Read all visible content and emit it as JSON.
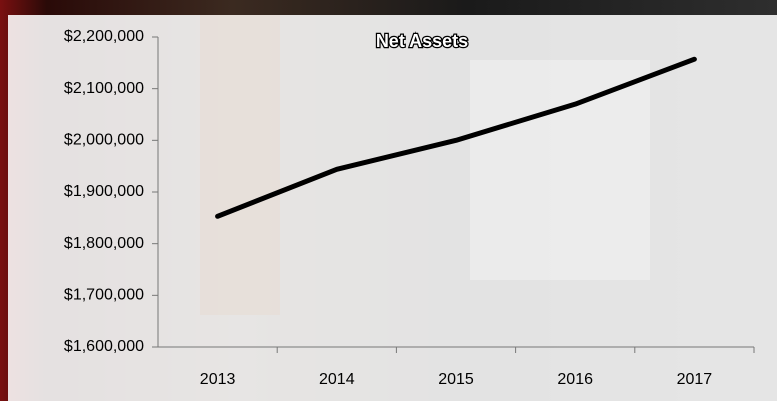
{
  "chart_data": {
    "type": "line",
    "title": "Net Assets",
    "categories": [
      "2013",
      "2014",
      "2015",
      "2016",
      "2017"
    ],
    "series": [
      {
        "name": "Net Assets",
        "color": "#000000",
        "values": [
          1853000,
          1944000,
          2000000,
          2070000,
          2157000
        ]
      }
    ],
    "ylim": [
      1600000,
      2200000
    ],
    "yticks": [
      {
        "value": 1600000,
        "label": "$1,600,000"
      },
      {
        "value": 1700000,
        "label": "$1,700,000"
      },
      {
        "value": 1800000,
        "label": "$1,800,000"
      },
      {
        "value": 1900000,
        "label": "$1,900,000"
      },
      {
        "value": 2000000,
        "label": "$2,000,000"
      },
      {
        "value": 2100000,
        "label": "$2,100,000"
      },
      {
        "value": 2200000,
        "label": "$2,200,000"
      }
    ],
    "grid": false
  }
}
